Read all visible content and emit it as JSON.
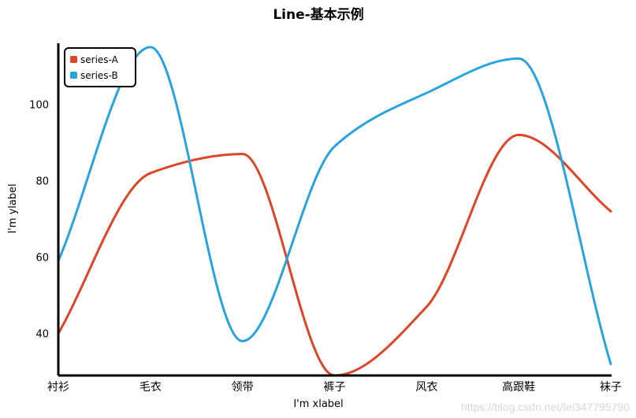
{
  "chart_data": {
    "type": "line",
    "title": "Line-基本示例",
    "xlabel": "I'm xlabel",
    "ylabel": "I'm ylabel",
    "categories": [
      "衬衫",
      "毛衣",
      "领带",
      "裤子",
      "风衣",
      "高跟鞋",
      "袜子"
    ],
    "yticks": [
      40,
      60,
      80,
      100
    ],
    "ylim": [
      29,
      116
    ],
    "smooth": true,
    "grid": false,
    "legend_position": "top-left",
    "series": [
      {
        "name": "series-A",
        "color": "#dd4528",
        "values": [
          40,
          82,
          87,
          29,
          47,
          92,
          72
        ]
      },
      {
        "name": "series-B",
        "color": "#28a3dd",
        "values": [
          59,
          115,
          38,
          89,
          103,
          112,
          32
        ]
      }
    ]
  },
  "watermark": "https://blog.csdn.net/fei347795790"
}
